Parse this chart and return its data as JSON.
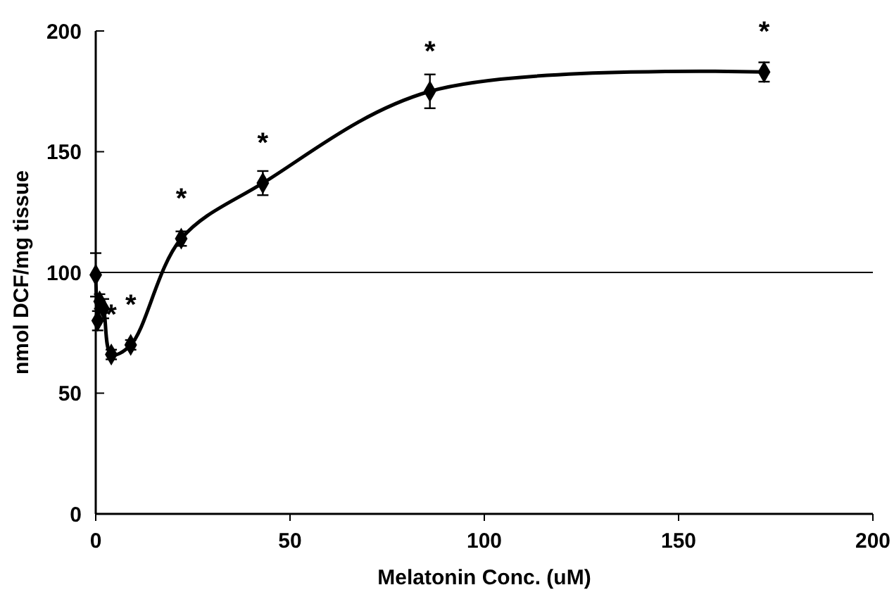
{
  "chart_data": {
    "type": "line",
    "xlabel": "Melatonin Conc. (uM)",
    "ylabel": "nmol DCF/mg tissue",
    "x": [
      0,
      0.5,
      1,
      2,
      4,
      9,
      22,
      43,
      86,
      172
    ],
    "series": [
      {
        "color": "#000000",
        "values": [
          99,
          80,
          88,
          85,
          66,
          70,
          114,
          137,
          175,
          183
        ],
        "errors": [
          9,
          4,
          3,
          4,
          2,
          2,
          3,
          5,
          7,
          4
        ]
      }
    ],
    "xlim": [
      0,
      200
    ],
    "xticks": [
      0,
      50,
      100,
      150,
      200
    ],
    "ylim": [
      0,
      200
    ],
    "yticks": [
      0,
      50,
      100,
      150,
      200
    ],
    "marker": "diamond",
    "line_style": "solid",
    "grid": false,
    "ref_lines": [
      {
        "axis": "y",
        "value": 100,
        "color": "#000000"
      }
    ],
    "annotations": [
      {
        "text": "*",
        "x": 4,
        "y": 66
      },
      {
        "text": "*",
        "x": 9,
        "y": 70
      },
      {
        "text": "*",
        "x": 22,
        "y": 114
      },
      {
        "text": "*",
        "x": 43,
        "y": 137
      },
      {
        "text": "*",
        "x": 86,
        "y": 175
      },
      {
        "text": "*",
        "x": 172,
        "y": 183
      }
    ]
  }
}
